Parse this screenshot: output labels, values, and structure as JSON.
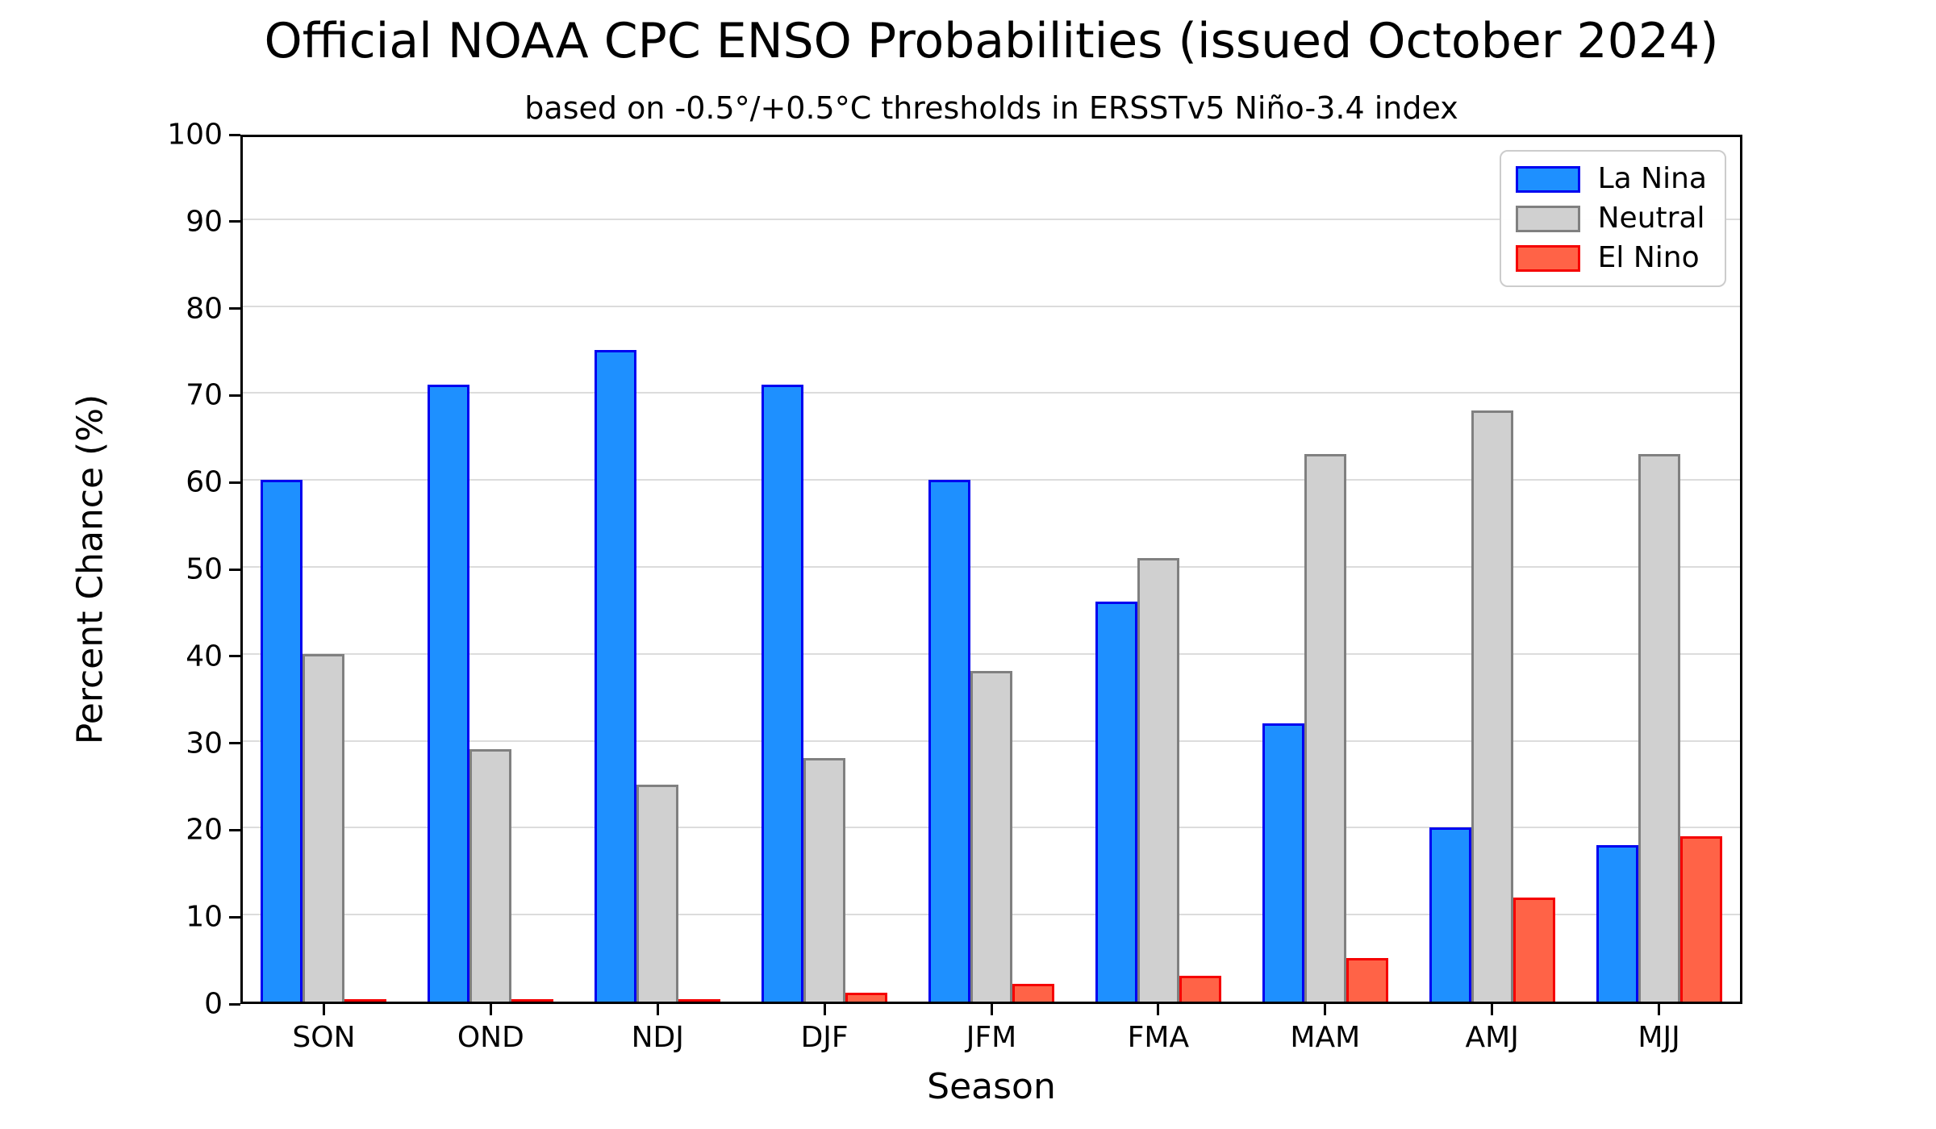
{
  "title": "Official NOAA CPC ENSO Probabilities (issued October 2024)",
  "subtitle": "based on -0.5°/+0.5°C thresholds in ERSSTv5 Niño-3.4 index",
  "chart_data": {
    "type": "bar",
    "title": "Official NOAA CPC ENSO Probabilities (issued October 2024)",
    "subtitle": "based on -0.5°/+0.5°C thresholds in ERSSTv5 Niño-3.4 index",
    "categories": [
      "SON",
      "OND",
      "NDJ",
      "DJF",
      "JFM",
      "FMA",
      "MAM",
      "AMJ",
      "MJJ"
    ],
    "series": [
      {
        "name": "La Nina",
        "fill": "#1E90FF",
        "edge": "#0000F0",
        "values": [
          60,
          71,
          75,
          71,
          60,
          46,
          32,
          20,
          18
        ]
      },
      {
        "name": "Neutral",
        "fill": "#D0D0D0",
        "edge": "#808080",
        "values": [
          40,
          29,
          25,
          28,
          38,
          51,
          63,
          68,
          63
        ]
      },
      {
        "name": "El Nino",
        "fill": "#FF6347",
        "edge": "#F50000",
        "values": [
          0,
          0,
          0,
          1,
          2,
          3,
          5,
          12,
          19
        ]
      }
    ],
    "xlabel": "Season",
    "ylabel": "Percent Chance (%)",
    "ylim": [
      0,
      100
    ],
    "yticks": [
      0,
      10,
      20,
      30,
      40,
      50,
      60,
      70,
      80,
      90,
      100
    ],
    "grid": true,
    "grid_color": "#dcdcdc",
    "legend_position": "upper right",
    "legend_labels": [
      "La Nina",
      "Neutral",
      "El Nino"
    ]
  }
}
